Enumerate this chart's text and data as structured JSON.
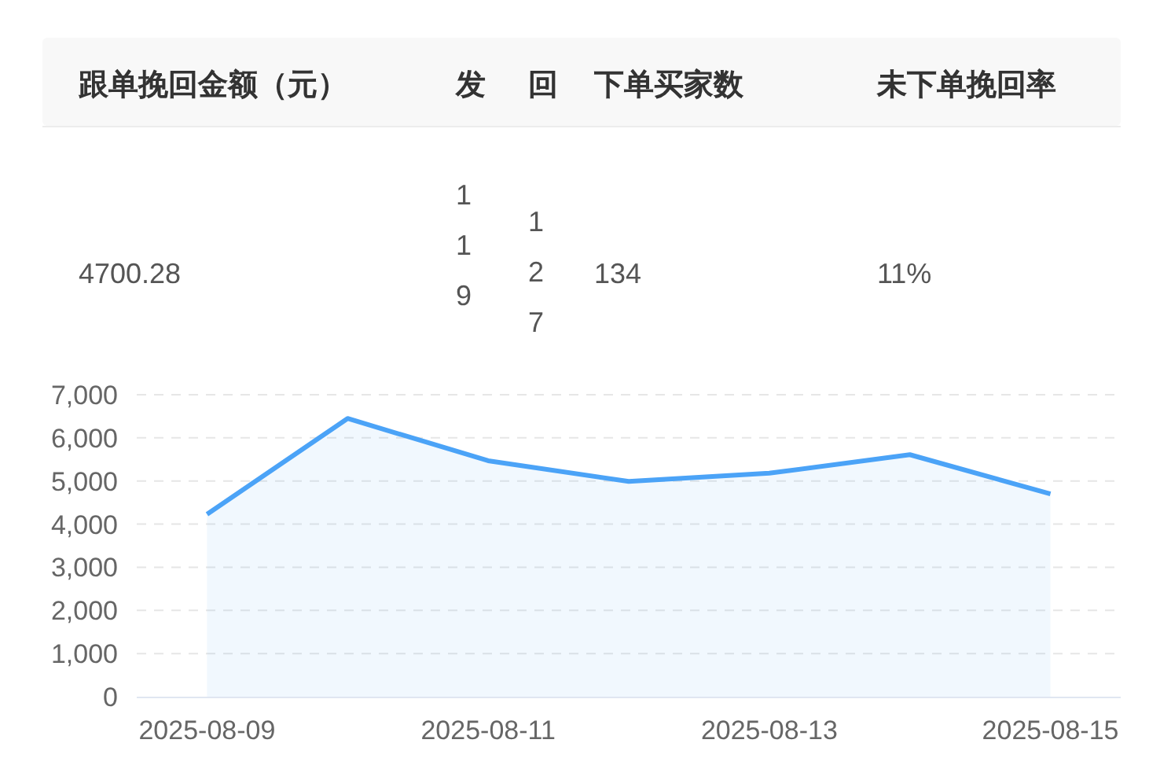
{
  "chart_data": [
    {
      "type": "other",
      "annotations": [
        "跟单挽回金额（元）",
        "发",
        "回",
        "下单买家数",
        "未下单挽回率",
        "4700.28",
        "119",
        "127",
        "134",
        "11%"
      ]
    },
    {
      "type": "area",
      "categories": [
        "2025-08-09",
        null,
        "2025-08-11",
        null,
        "2025-08-13",
        null,
        "2025-08-15"
      ],
      "series": [
        {
          "color": "#4ba3f7",
          "values": [
            4230,
            6450,
            5470,
            4990,
            5180,
            5610,
            4700
          ]
        }
      ],
      "ylim": [
        0,
        7000
      ],
      "yticks": [
        0,
        {
          "value": 1000,
          "label": "1,000"
        },
        {
          "value": 2000,
          "label": "2,000"
        },
        {
          "value": 3000,
          "label": "3,000"
        },
        {
          "value": 4000,
          "label": "4,000"
        },
        {
          "value": 5000,
          "label": "5,000"
        },
        {
          "value": 6000,
          "label": "6,000"
        },
        {
          "value": 7000,
          "label": "7,000"
        }
      ],
      "grid": "y",
      "line_style": "solid"
    }
  ]
}
